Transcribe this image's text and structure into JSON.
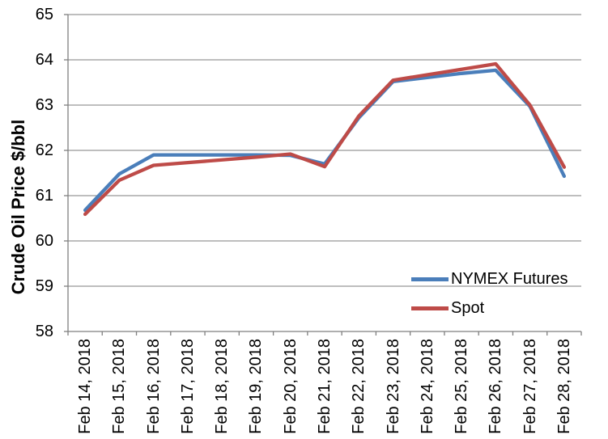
{
  "chart_data": {
    "type": "line",
    "title": "",
    "xlabel": "",
    "ylabel": "Crude Oil Price $/bbl",
    "ylim": [
      58,
      65
    ],
    "ytick_step": 1,
    "grid": true,
    "legend_position": "right-middle",
    "categories": [
      "Feb 14, 2018",
      "Feb 15, 2018",
      "Feb 16, 2018",
      "Feb 17, 2018",
      "Feb 18, 2018",
      "Feb 19, 2018",
      "Feb 20, 2018",
      "Feb 21, 2018",
      "Feb 22, 2018",
      "Feb 23, 2018",
      "Feb 24, 2018",
      "Feb 25, 2018",
      "Feb 26, 2018",
      "Feb 27, 2018",
      "Feb 28, 2018"
    ],
    "series": [
      {
        "name": "NYMEX Futures",
        "color": "#4A7EBA",
        "values": [
          60.68,
          61.48,
          61.9,
          61.9,
          61.9,
          61.9,
          61.89,
          61.7,
          62.72,
          63.52,
          63.61,
          63.7,
          63.77,
          62.97,
          61.43
        ]
      },
      {
        "name": "Spot",
        "color": "#BE4B48",
        "values": [
          60.59,
          61.34,
          61.67,
          61.73,
          61.79,
          61.85,
          61.92,
          61.64,
          62.76,
          63.55,
          63.67,
          63.79,
          63.91,
          63.0,
          61.63
        ]
      }
    ],
    "colors": {
      "gridline": "#969696",
      "axis": "#7F7F7F",
      "label": "#000000",
      "background": "#FFFFFF"
    }
  }
}
